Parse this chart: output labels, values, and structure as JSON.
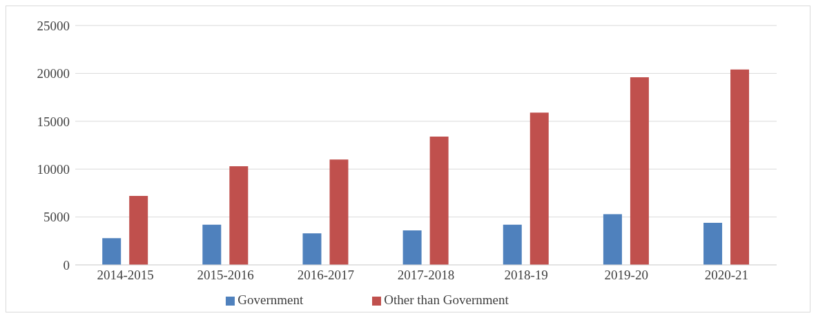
{
  "chart_data": {
    "type": "bar",
    "categories": [
      "2014-2015",
      "2015-2016",
      "2016-2017",
      "2017-2018",
      "2018-19",
      "2019-20",
      "2020-21"
    ],
    "series": [
      {
        "name": "Government",
        "color": "#4f81bd",
        "values": [
          2800,
          4200,
          3300,
          3600,
          4200,
          5300,
          4400
        ]
      },
      {
        "name": "Other than Government",
        "color": "#c0504d",
        "values": [
          7200,
          10300,
          11000,
          13400,
          15900,
          19600,
          20400
        ]
      }
    ],
    "ylim": [
      0,
      25000
    ],
    "yticks": [
      0,
      5000,
      10000,
      15000,
      20000,
      25000
    ],
    "grid": "y",
    "legend": "bottom"
  }
}
